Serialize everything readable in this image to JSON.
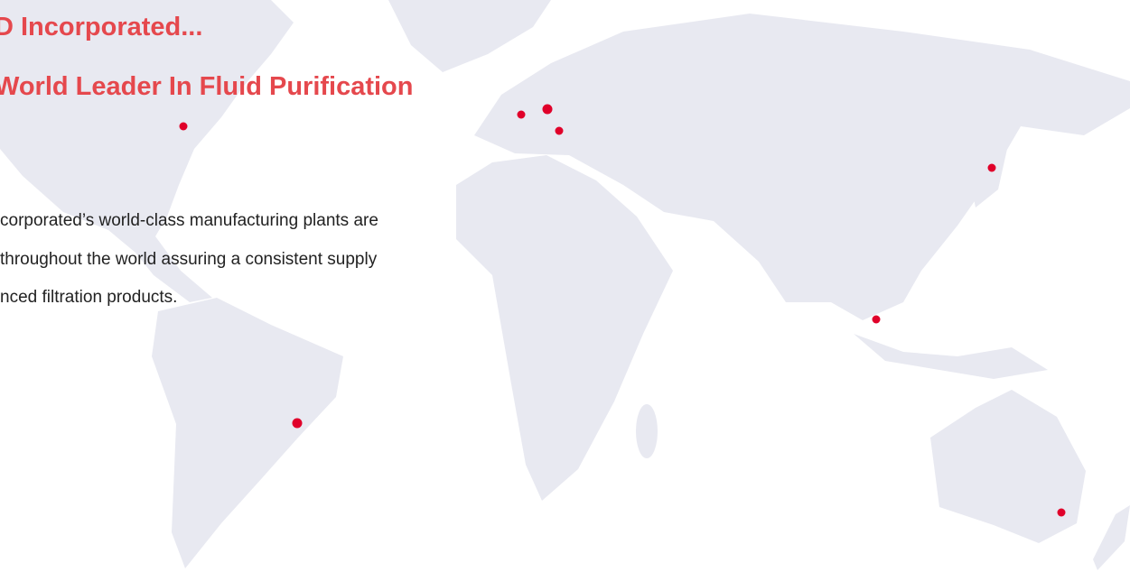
{
  "header": {
    "title": "D Incorporated...",
    "subtitle": "World Leader In Fluid Purification"
  },
  "body": {
    "lines": [
      "corporated’s world-class manufacturing plants are",
      "throughout the world assuring a consistent supply",
      "nced filtration products."
    ]
  }
}
